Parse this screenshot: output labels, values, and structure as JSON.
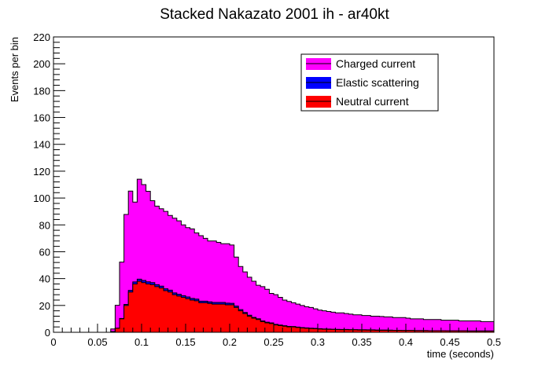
{
  "chart_data": {
    "type": "area",
    "title": "Stacked Nakazato 2001 ih - ar40kt",
    "xlabel": "time (seconds)",
    "ylabel": "Events per bin",
    "xlim": [
      0,
      0.5
    ],
    "ylim": [
      0,
      220
    ],
    "stacked": true,
    "step": true,
    "bin_width": 0.005,
    "x_ticks": [
      "0",
      "0.05",
      "0.1",
      "0.15",
      "0.2",
      "0.25",
      "0.3",
      "0.35",
      "0.4",
      "0.45",
      "0.5"
    ],
    "y_ticks": [
      "0",
      "20",
      "40",
      "60",
      "80",
      "100",
      "120",
      "140",
      "160",
      "180",
      "200",
      "220"
    ],
    "legend_position": "top-right",
    "x": [
      0.0,
      0.005,
      0.01,
      0.015,
      0.02,
      0.025,
      0.03,
      0.035,
      0.04,
      0.045,
      0.05,
      0.055,
      0.06,
      0.065,
      0.07,
      0.075,
      0.08,
      0.085,
      0.09,
      0.095,
      0.1,
      0.105,
      0.11,
      0.115,
      0.12,
      0.125,
      0.13,
      0.135,
      0.14,
      0.145,
      0.15,
      0.155,
      0.16,
      0.165,
      0.17,
      0.175,
      0.18,
      0.185,
      0.19,
      0.195,
      0.2,
      0.205,
      0.21,
      0.215,
      0.22,
      0.225,
      0.23,
      0.235,
      0.24,
      0.245,
      0.25,
      0.255,
      0.26,
      0.265,
      0.27,
      0.275,
      0.28,
      0.285,
      0.29,
      0.295,
      0.3,
      0.305,
      0.31,
      0.315,
      0.32,
      0.325,
      0.33,
      0.335,
      0.34,
      0.345,
      0.35,
      0.355,
      0.36,
      0.365,
      0.37,
      0.375,
      0.38,
      0.385,
      0.39,
      0.395,
      0.4,
      0.405,
      0.41,
      0.415,
      0.42,
      0.425,
      0.43,
      0.435,
      0.44,
      0.445,
      0.45,
      0.455,
      0.46,
      0.465,
      0.47,
      0.475,
      0.48,
      0.485,
      0.49,
      0.495
    ],
    "series": [
      {
        "name": "Neutral current",
        "color": "#ff0000",
        "values": [
          0,
          0,
          0,
          0,
          0,
          0,
          0,
          0,
          0,
          0,
          0,
          0,
          0,
          0.5,
          3,
          10,
          20,
          30,
          36,
          38,
          37,
          36,
          35.5,
          34,
          33,
          31,
          30,
          28,
          27,
          26,
          25,
          24,
          23.5,
          22,
          22,
          21.5,
          21,
          21,
          21,
          20.5,
          20.5,
          18.5,
          16,
          14,
          12,
          10.5,
          9.5,
          8,
          7,
          6.5,
          5.5,
          5,
          4.5,
          4,
          4,
          3.6,
          3.2,
          3,
          2.8,
          2.6,
          2.4,
          2.3,
          2.2,
          2.1,
          2.0,
          1.9,
          1.9,
          1.8,
          1.8,
          1.7,
          1.7,
          1.6,
          1.6,
          1.5,
          1.5,
          1.5,
          1.4,
          1.4,
          1.4,
          1.3,
          1.3,
          1.3,
          1.2,
          1.2,
          1.2,
          1.1,
          1.1,
          1.1,
          1.1,
          1.0,
          1.0,
          1.0,
          1.0,
          1.0,
          0.9,
          0.9,
          0.9,
          0.9,
          0.9,
          0.9
        ]
      },
      {
        "name": "Elastic scattering",
        "color": "#0000ff",
        "values": [
          0,
          0,
          0,
          0,
          0,
          0,
          0,
          0,
          0,
          0,
          0,
          0,
          0,
          0,
          0.1,
          0.3,
          0.8,
          1.2,
          1.5,
          1.6,
          1.6,
          1.6,
          1.5,
          1.5,
          1.4,
          1.4,
          1.4,
          1.3,
          1.3,
          1.3,
          1.3,
          1.2,
          1.2,
          1.2,
          1.2,
          1.2,
          1.2,
          1.2,
          1.2,
          1.2,
          1.1,
          1.0,
          0.9,
          0.8,
          0.7,
          0.6,
          0.6,
          0.5,
          0.5,
          0.5,
          0.4,
          0.4,
          0.4,
          0.4,
          0.3,
          0.3,
          0.3,
          0.3,
          0.3,
          0.3,
          0.3,
          0.2,
          0.2,
          0.2,
          0.2,
          0.2,
          0.2,
          0.2,
          0.2,
          0.2,
          0.2,
          0.2,
          0.2,
          0.2,
          0.2,
          0.2,
          0.2,
          0.1,
          0.1,
          0.1,
          0.1,
          0.1,
          0.1,
          0.1,
          0.1,
          0.1,
          0.1,
          0.1,
          0.1,
          0.1,
          0.1,
          0.1,
          0.1,
          0.1,
          0.1,
          0.1,
          0.1,
          0.1,
          0.1,
          0.1
        ]
      },
      {
        "name": "Charged current",
        "color": "#ff00ff",
        "values": [
          0,
          0,
          0,
          0,
          0,
          0,
          0,
          0,
          0,
          0,
          0,
          0,
          0,
          2,
          17,
          42,
          67,
          74,
          59.5,
          74.4,
          71.4,
          67.4,
          61,
          58.5,
          57.6,
          57.6,
          55.6,
          55.7,
          54.7,
          52.7,
          51.7,
          51.8,
          49.3,
          48.8,
          46.8,
          45.3,
          45.8,
          44.8,
          43.8,
          44.3,
          43.4,
          36.5,
          32.1,
          30.2,
          28.3,
          26.9,
          24.9,
          25.5,
          24.5,
          22,
          22.1,
          20.6,
          19.1,
          18.6,
          17.7,
          17.1,
          16.5,
          15.7,
          15.4,
          14.6,
          13.8,
          13.5,
          13.1,
          12.7,
          12.3,
          12.4,
          11.9,
          11.5,
          11.0,
          11.1,
          10.6,
          10.7,
          10.2,
          10.3,
          10.1,
          9.8,
          9.9,
          9.5,
          9.5,
          9.6,
          9.1,
          8.6,
          8.7,
          8.7,
          8.2,
          8.3,
          8.3,
          8.3,
          7.8,
          7.9,
          7.9,
          7.9,
          7.4,
          7.4,
          7.5,
          7.5,
          7.5,
          7.0,
          7.0,
          7.0
        ]
      }
    ]
  }
}
